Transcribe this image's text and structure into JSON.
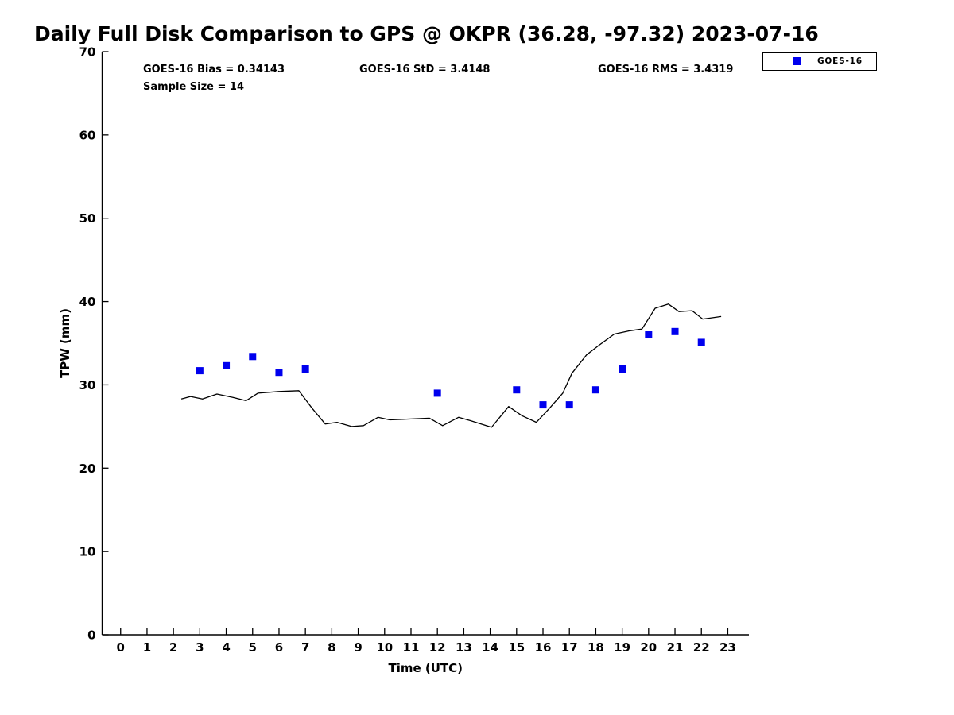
{
  "figure": {
    "annotations": {
      "bias": "GOES-16 Bias = 0.34143",
      "std": "GOES-16 StD = 3.4148",
      "rms": "GOES-16 RMS = 3.4319",
      "sample_size": "Sample Size = 14"
    },
    "legend": {
      "label": "GOES-16",
      "marker": "blue-square",
      "marker_color": "#0000EE"
    }
  },
  "chart_data": {
    "type": "line",
    "title": "Daily Full Disk Comparison to GPS @ OKPR (36.28, -97.32) 2023-07-16",
    "xlabel": "Time (UTC)",
    "ylabel": "TPW (mm)",
    "xlim": [
      -0.7,
      23.8
    ],
    "ylim": [
      0,
      70
    ],
    "xticks": [
      0,
      1,
      2,
      3,
      4,
      5,
      6,
      7,
      8,
      9,
      10,
      11,
      12,
      13,
      14,
      15,
      16,
      17,
      18,
      19,
      20,
      21,
      22,
      23
    ],
    "yticks": [
      0,
      10,
      20,
      30,
      40,
      50,
      60,
      70
    ],
    "grid": false,
    "legend_position": "top-right",
    "stats": {
      "bias": 0.34143,
      "std": 3.4148,
      "rms": 3.4319,
      "sample_size": 14
    },
    "series": [
      {
        "name": "GPS",
        "type": "line",
        "color": "#000000",
        "x": [
          2.3,
          2.65,
          3.1,
          3.65,
          4.25,
          4.75,
          5.2,
          6.0,
          6.75,
          7.25,
          7.75,
          8.2,
          8.75,
          9.2,
          9.75,
          10.2,
          11.0,
          11.7,
          12.2,
          12.8,
          13.25,
          14.05,
          14.7,
          15.2,
          15.75,
          16.25,
          16.75,
          17.1,
          17.65,
          18.1,
          18.7,
          19.3,
          19.75,
          20.25,
          20.75,
          21.15,
          21.65,
          22.05,
          22.3,
          22.75
        ],
        "y": [
          28.3,
          28.6,
          28.3,
          28.9,
          28.5,
          28.1,
          29.0,
          29.2,
          29.3,
          27.2,
          25.3,
          25.5,
          25.0,
          25.1,
          26.1,
          25.8,
          25.9,
          26.0,
          25.1,
          26.1,
          25.7,
          24.9,
          27.4,
          26.3,
          25.5,
          27.2,
          29.0,
          31.4,
          33.6,
          34.7,
          36.1,
          36.5,
          36.7,
          39.2,
          39.7,
          38.8,
          38.9,
          37.9,
          38.0,
          38.2
        ]
      },
      {
        "name": "GOES-16",
        "type": "scatter",
        "marker": "square",
        "marker_size": 9,
        "color": "#0000EE",
        "x": [
          3,
          4,
          5,
          6,
          7,
          12,
          15,
          16,
          17,
          18,
          19,
          20,
          21,
          22
        ],
        "y": [
          31.7,
          32.3,
          33.4,
          31.5,
          31.9,
          29.0,
          29.4,
          27.6,
          27.6,
          29.4,
          31.9,
          36.0,
          36.4,
          35.1
        ]
      }
    ]
  }
}
